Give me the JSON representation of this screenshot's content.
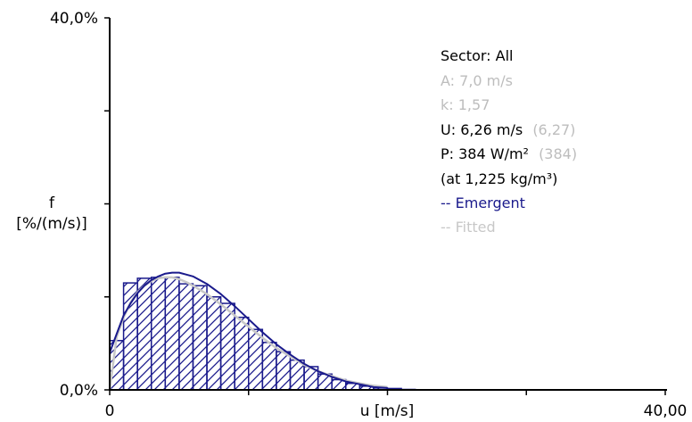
{
  "chart_data": {
    "type": "bar",
    "ylabel_line1": "f",
    "ylabel_line2": "[%/(m/s)]",
    "xlabel": "u [m/s]",
    "xlim": [
      0,
      40
    ],
    "ylim": [
      0,
      40
    ],
    "x_tick_labels": [
      "0",
      "40,00"
    ],
    "y_tick_labels": [
      "0,0%",
      "40,0%"
    ],
    "bin_width": 1,
    "histogram": {
      "x": [
        0,
        1,
        2,
        3,
        4,
        5,
        6,
        7,
        8,
        9,
        10,
        11,
        12,
        13,
        14,
        15,
        16,
        17,
        18,
        19,
        20,
        21,
        22,
        23,
        24,
        25,
        26,
        27,
        28,
        29,
        30,
        31,
        32,
        33,
        34,
        35,
        36,
        37,
        38,
        39
      ],
      "values": [
        5.3,
        11.5,
        12.0,
        12.1,
        12.1,
        11.4,
        11.2,
        10.0,
        9.3,
        7.8,
        6.5,
        5.1,
        4.1,
        3.2,
        2.5,
        1.7,
        1.1,
        0.7,
        0.4,
        0.2,
        0.15,
        0.05,
        0,
        0,
        0,
        0,
        0,
        0,
        0,
        0,
        0,
        0,
        0,
        0,
        0,
        0,
        0,
        0,
        0,
        0
      ],
      "color": "#1a1a8c"
    },
    "emergent_curve": {
      "x": [
        0,
        0.5,
        1,
        1.5,
        2,
        2.5,
        3,
        3.5,
        4,
        4.5,
        5,
        5.5,
        6,
        7,
        8,
        9,
        10,
        11,
        12,
        13,
        14,
        15,
        16,
        17,
        18,
        19,
        20
      ],
      "y": [
        4.0,
        6.0,
        8.0,
        9.3,
        10.4,
        11.2,
        11.8,
        12.2,
        12.5,
        12.6,
        12.6,
        12.4,
        12.2,
        11.4,
        10.3,
        9.0,
        7.6,
        6.2,
        4.9,
        3.8,
        2.8,
        2.0,
        1.4,
        0.9,
        0.6,
        0.3,
        0.2
      ],
      "color": "#1a1a8c"
    },
    "fitted_curve": {
      "x": [
        0,
        0.5,
        1,
        1.5,
        2,
        2.5,
        3,
        3.5,
        4,
        4.5,
        5,
        5.5,
        6,
        7,
        8,
        9,
        10,
        11,
        12,
        13,
        14,
        15,
        16,
        17,
        18,
        19,
        20
      ],
      "y": [
        0,
        5.7,
        7.8,
        9.4,
        10.5,
        11.2,
        11.7,
        12.0,
        12.1,
        12.1,
        11.9,
        11.6,
        11.2,
        10.3,
        9.2,
        8.0,
        6.8,
        5.6,
        4.5,
        3.6,
        2.7,
        2.0,
        1.5,
        1.0,
        0.7,
        0.45,
        0.3
      ],
      "color": "#c8c8c8"
    },
    "annotations": {
      "sector": "Sector: All",
      "a": "A: 7,0 m/s",
      "k": "k: 1,57",
      "u_label": "U: 6,26 m/s",
      "u_fitted": "(6,27)",
      "p_label": "P: 384 W/m²",
      "p_fitted": "(384)",
      "density": "(at 1,225 kg/m³)",
      "legend_emergent": "-- Emergent",
      "legend_fitted": "-- Fitted"
    },
    "colors": {
      "axis": "#000000",
      "emergent": "#1a1a8c",
      "fitted": "#c8c8c8",
      "text": "#000000",
      "muted_text": "#bdbdbd"
    },
    "grid": false,
    "legend_position": "top-right"
  }
}
